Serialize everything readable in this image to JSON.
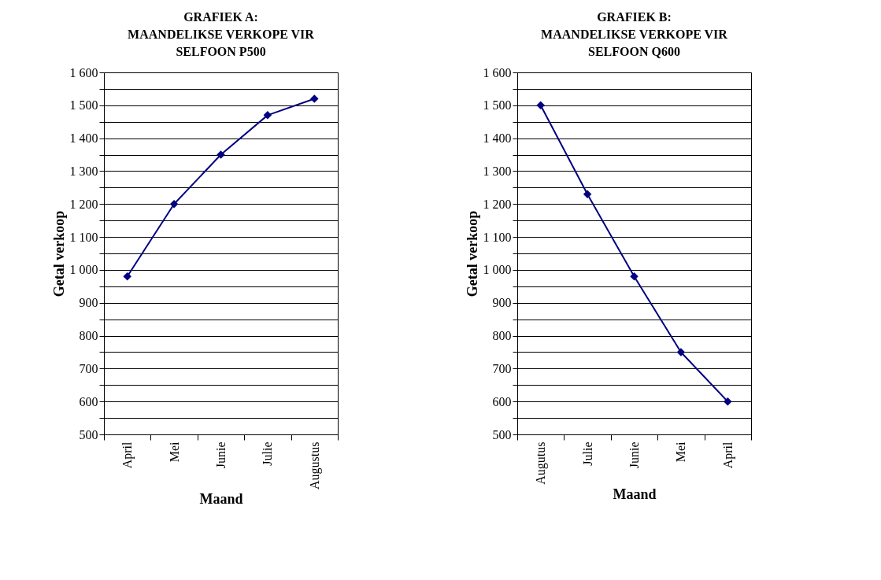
{
  "chart_data": [
    {
      "type": "line",
      "title": "GRAFIEK A:\nMAANDELIKSE VERKOPE VIR\nSELFOON P500",
      "xlabel": "Maand",
      "ylabel": "Getal verkoop",
      "categories": [
        "April",
        "Mei",
        "Junie",
        "Julie",
        "Augustus"
      ],
      "series": [
        {
          "color": "#000080",
          "values": [
            980,
            1200,
            1350,
            1470,
            1520
          ]
        }
      ],
      "ylim": [
        500,
        1600
      ],
      "yticks": [
        500,
        {
          "value": 550,
          "label": null
        },
        600,
        {
          "value": 650,
          "label": null
        },
        700,
        {
          "value": 750,
          "label": null
        },
        800,
        {
          "value": 850,
          "label": null
        },
        900,
        {
          "value": 950,
          "label": null
        },
        {
          "value": 1000,
          "label": "1 000"
        },
        {
          "value": 1050,
          "label": null
        },
        {
          "value": 1100,
          "label": "1 100"
        },
        {
          "value": 1150,
          "label": null
        },
        {
          "value": 1200,
          "label": "1 200"
        },
        {
          "value": 1250,
          "label": null
        },
        {
          "value": 1300,
          "label": "1 300"
        },
        {
          "value": 1350,
          "label": null
        },
        {
          "value": 1400,
          "label": "1 400"
        },
        {
          "value": 1450,
          "label": null
        },
        {
          "value": 1500,
          "label": "1 500"
        },
        {
          "value": 1550,
          "label": null
        },
        {
          "value": 1600,
          "label": "1 600"
        }
      ],
      "grid": "y",
      "marker": "diamond",
      "legend": false
    },
    {
      "type": "line",
      "title": "GRAFIEK B:\nMAANDELIKSE VERKOPE VIR\nSELFOON Q600",
      "xlabel": "Maand",
      "ylabel": "Getal verkoop",
      "categories": [
        "Augutus",
        "Julie",
        "Junie",
        "Mei",
        "April"
      ],
      "series": [
        {
          "color": "#000080",
          "values": [
            1500,
            1230,
            980,
            750,
            600
          ]
        }
      ],
      "ylim": [
        500,
        1600
      ],
      "yticks": [
        500,
        {
          "value": 550,
          "label": null
        },
        600,
        {
          "value": 650,
          "label": null
        },
        700,
        {
          "value": 750,
          "label": null
        },
        800,
        {
          "value": 850,
          "label": null
        },
        900,
        {
          "value": 950,
          "label": null
        },
        {
          "value": 1000,
          "label": "1 000"
        },
        {
          "value": 1050,
          "label": null
        },
        {
          "value": 1100,
          "label": "1 100"
        },
        {
          "value": 1150,
          "label": null
        },
        {
          "value": 1200,
          "label": "1 200"
        },
        {
          "value": 1250,
          "label": null
        },
        {
          "value": 1300,
          "label": "1 300"
        },
        {
          "value": 1350,
          "label": null
        },
        {
          "value": 1400,
          "label": "1 400"
        },
        {
          "value": 1450,
          "label": null
        },
        {
          "value": 1500,
          "label": "1 500"
        },
        {
          "value": 1550,
          "label": null
        },
        {
          "value": 1600,
          "label": "1 600"
        }
      ],
      "grid": "y",
      "marker": "diamond",
      "legend": false
    }
  ]
}
